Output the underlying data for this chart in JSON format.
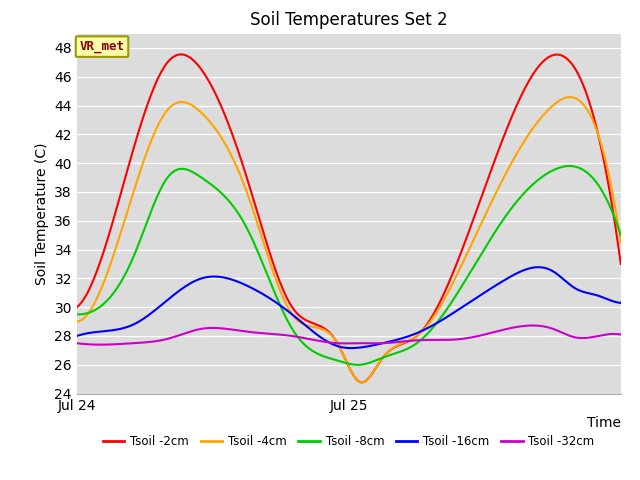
{
  "title": "Soil Temperatures Set 2",
  "xlabel": "Time",
  "ylabel": "Soil Temperature (C)",
  "ylim": [
    24,
    49
  ],
  "yticks": [
    24,
    26,
    28,
    30,
    32,
    34,
    36,
    38,
    40,
    42,
    44,
    46,
    48
  ],
  "xtick_labels": [
    "Jul 24",
    "Jul 25"
  ],
  "plot_bg_color": "#dcdcdc",
  "fig_bg_color": "#ffffff",
  "annotation_text": "VR_met",
  "annotation_fg_color": "#8b0000",
  "annotation_bg_color": "#ffffaa",
  "annotation_edge_color": "#999900",
  "series": {
    "Tsoil -2cm": {
      "color": "#ff0000",
      "points_x": [
        0,
        2,
        5,
        8,
        11,
        15,
        19,
        23,
        25,
        27,
        30,
        34,
        38,
        42,
        46,
        48
      ],
      "points_y": [
        30.0,
        33.0,
        41.0,
        47.0,
        46.5,
        39.0,
        30.0,
        27.5,
        24.8,
        26.5,
        28.0,
        34.0,
        42.5,
        47.5,
        42.0,
        33.0
      ]
    },
    "Tsoil -4cm": {
      "color": "#ffa500",
      "points_x": [
        0,
        2,
        5,
        8,
        11,
        15,
        19,
        23,
        25,
        27,
        30,
        34,
        38,
        42,
        46,
        48
      ],
      "points_y": [
        29.0,
        31.0,
        38.0,
        43.7,
        43.5,
        38.0,
        29.5,
        27.5,
        24.8,
        26.5,
        28.0,
        33.0,
        39.5,
        44.0,
        42.0,
        34.5
      ]
    },
    "Tsoil -8cm": {
      "color": "#00cc00",
      "points_x": [
        0,
        2,
        5,
        8,
        11,
        15,
        19,
        23,
        25,
        27,
        30,
        34,
        38,
        42,
        46,
        48
      ],
      "points_y": [
        29.5,
        30.0,
        33.5,
        39.0,
        39.0,
        35.5,
        28.5,
        26.3,
        26.0,
        26.5,
        27.5,
        31.5,
        36.5,
        39.5,
        38.5,
        35.0
      ]
    },
    "Tsoil -16cm": {
      "color": "#0000ff",
      "points_x": [
        0,
        2,
        5,
        8,
        11,
        15,
        19,
        23,
        25,
        27,
        30,
        34,
        38,
        42,
        44,
        45,
        46,
        47,
        48
      ],
      "points_y": [
        28.0,
        28.3,
        28.8,
        30.5,
        32.0,
        31.5,
        29.5,
        27.3,
        27.2,
        27.5,
        28.2,
        30.0,
        32.0,
        32.5,
        31.3,
        31.0,
        30.8,
        30.5,
        30.3
      ]
    },
    "Tsoil -32cm": {
      "color": "#cc00cc",
      "points_x": [
        0,
        2,
        5,
        8,
        11,
        15,
        19,
        23,
        25,
        27,
        30,
        34,
        38,
        42,
        44,
        46,
        48
      ],
      "points_y": [
        27.5,
        27.4,
        27.5,
        27.8,
        28.5,
        28.3,
        28.0,
        27.5,
        27.5,
        27.5,
        27.7,
        27.8,
        28.5,
        28.5,
        27.9,
        28.0,
        28.1
      ]
    }
  },
  "legend_labels": [
    "Tsoil -2cm",
    "Tsoil -4cm",
    "Tsoil -8cm",
    "Tsoil -16cm",
    "Tsoil -32cm"
  ],
  "legend_colors": [
    "#ff0000",
    "#ffa500",
    "#00cc00",
    "#0000ff",
    "#cc00cc"
  ]
}
